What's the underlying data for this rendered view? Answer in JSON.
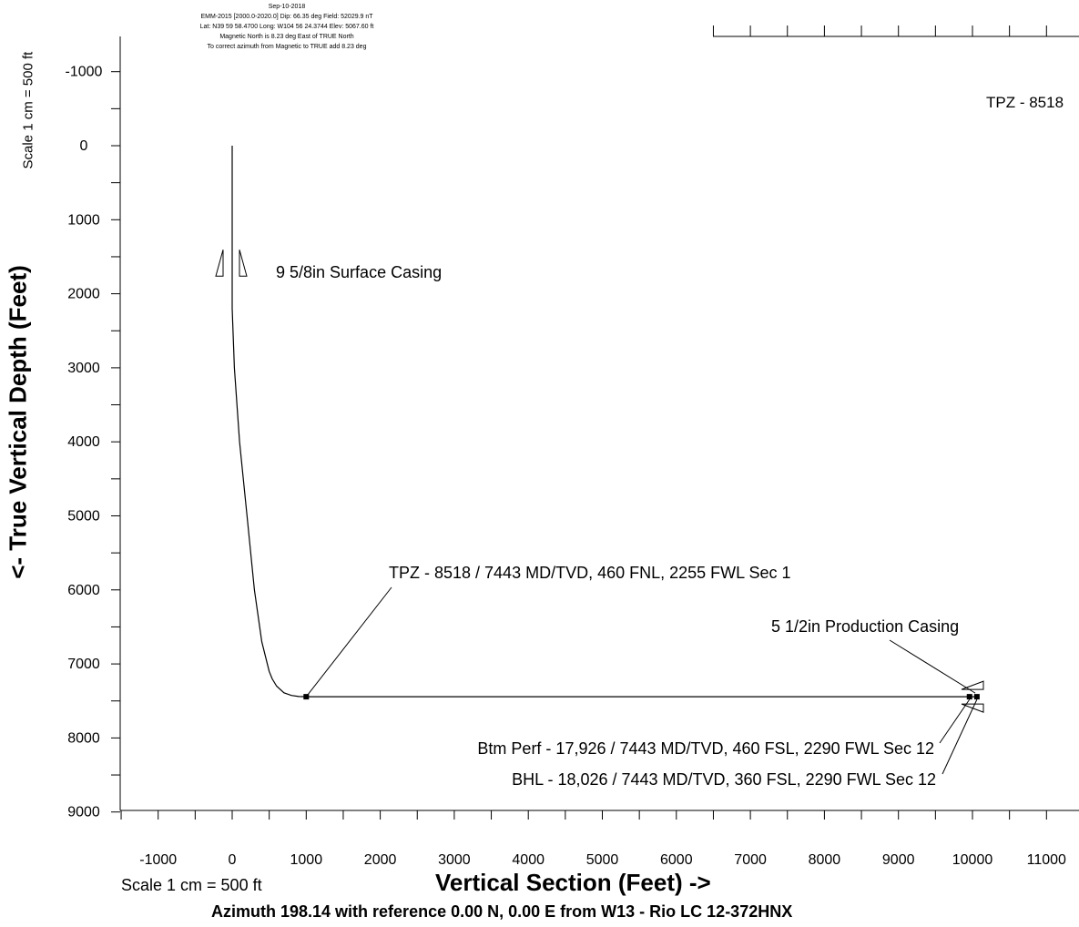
{
  "header": {
    "date": "Sep-10-2018",
    "model": "EMM-2015 [2000.0-2020.0] Dip: 66.35 deg Field: 52029.9 nT",
    "location": "Lat: N39 59 58.4700 Long: W104 56 24.3744 Elev: 5067.60 ft",
    "magnetic_north": "Magnetic North is 8.23 deg East of TRUE North",
    "correction": "To correct azimuth from Magnetic to TRUE add 8.23 deg"
  },
  "scale_vertical": "Scale 1 cm = 500 ft",
  "scale_horizontal": "Scale 1 cm = 500 ft",
  "azimuth_caption": "Azimuth 198.14 with reference 0.00 N, 0.00 E from W13 - Rio LC 12-372HNX",
  "chart_data": {
    "type": "line",
    "xlabel": "Vertical Section (Feet) ->",
    "ylabel": "<- True Vertical Depth (Feet)",
    "xlim": [
      -1500,
      11500
    ],
    "ylim": [
      9000,
      -1500
    ],
    "x_ticks": [
      -1000,
      0,
      1000,
      2000,
      3000,
      4000,
      5000,
      6000,
      7000,
      8000,
      9000,
      10000,
      11000
    ],
    "y_ticks": [
      -1000,
      0,
      1000,
      2000,
      3000,
      4000,
      5000,
      6000,
      7000,
      8000,
      9000
    ],
    "x_tick_labels": [
      "-1000",
      "0",
      "1000",
      "2000",
      "3000",
      "4000",
      "5000",
      "6000",
      "7000",
      "8000",
      "9000",
      "10000",
      "11000"
    ],
    "y_tick_labels": [
      "-1000",
      "0",
      "1000",
      "2000",
      "3000",
      "4000",
      "5000",
      "6000",
      "7000",
      "8000",
      "9000"
    ],
    "grid": false,
    "series": [
      {
        "x": [
          0,
          0,
          0,
          30,
          100,
          200,
          300,
          400,
          500,
          540,
          600,
          700,
          800,
          900,
          1000,
          2000,
          4000,
          6000,
          8000,
          9000,
          10000,
          10060
        ],
        "y": [
          0,
          1000,
          2200,
          3000,
          4000,
          5000,
          6000,
          6700,
          7100,
          7200,
          7300,
          7390,
          7425,
          7440,
          7443,
          7443,
          7443,
          7443,
          7443,
          7443,
          7443,
          7443
        ]
      }
    ],
    "annotations": [
      {
        "text": "9 5/8in Surface Casing",
        "x": 0,
        "y": 1700,
        "kind": "casing"
      },
      {
        "text": "TPZ - 8518 / 7443 MD/TVD, 460 FNL, 2255 FWL Sec 1",
        "x": 1000,
        "y": 7443,
        "kind": "point"
      },
      {
        "text": "5 1/2in Production Casing",
        "x": 10000,
        "y": 7443,
        "kind": "casing"
      },
      {
        "text": "Btm Perf - 17,926 / 7443 MD/TVD, 460 FSL, 2290 FWL Sec 12",
        "x": 9960,
        "y": 7443,
        "kind": "point"
      },
      {
        "text": "BHL - 18,026 / 7443 MD/TVD, 360 FSL, 2290 FWL Sec 12",
        "x": 10060,
        "y": 7443,
        "kind": "point"
      }
    ],
    "top_ruler_text": "TPZ - 8518"
  }
}
